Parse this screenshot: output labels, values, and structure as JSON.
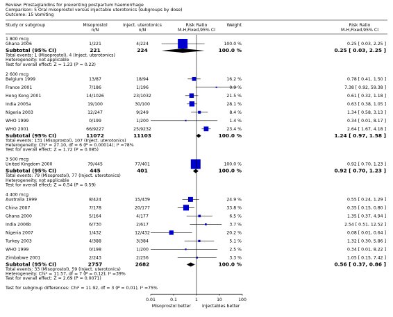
{
  "chart_data": {
    "type": "forest",
    "review": "Review:   Prostaglandins for preventing postpartum haemorrhage",
    "comparison": "Comparison:   5 Oral misoprostol versus injectable uterotonics (subgroups by dose)",
    "outcome": "Outcome:   15 Vomiting",
    "columns": {
      "study": "Study or subgroup",
      "exp": "Misoprostol",
      "exp_unit": "n/N",
      "ctl": "Inject. uterotonics",
      "ctl_unit": "n/N",
      "plot": "Risk Ratio",
      "plot_method": "M-H,Fixed,95% CI",
      "weight": "Weight",
      "effect": "Risk Ratio",
      "effect_method": "M-H,Fixed,95% CI"
    },
    "groups": [
      {
        "name": "1 800 mcg",
        "studies": [
          {
            "name": "Ghana 2006",
            "exp": "1/221",
            "ctl": "4/224",
            "weight": {
              "value": 100.0,
              "label": "100.0 %"
            },
            "values": [
              0.25,
              0.03,
              2.25
            ],
            "value_label": "0.25 [ 0.03, 2.25 ]"
          }
        ],
        "subtotal": {
          "name": "Subtotal (95% CI)",
          "exp": 221,
          "ctl": 224,
          "weight": {
            "value": 100.0,
            "label": "100.0 %"
          },
          "values": [
            0.25,
            0.03,
            2.25
          ],
          "value_label": "0.25 [ 0.03, 2.25 ]"
        },
        "events": "Total events: 1 (Misoprostol), 4 (Inject. uterotonics)",
        "heterogeneity": "Heterogeneity: not applicable",
        "overall": "Test for overall effect: Z = 1.23 (P = 0.22)"
      },
      {
        "name": "2 600 mcg",
        "studies": [
          {
            "name": "Belgium 1999",
            "exp": "13/87",
            "ctl": "18/94",
            "weight": {
              "value": 16.2,
              "label": "16.2 %"
            },
            "values": [
              0.78,
              0.41,
              1.5
            ],
            "value_label": "0.78 [ 0.41, 1.50 ]"
          },
          {
            "name": "France 2001",
            "exp": "7/186",
            "ctl": "1/196",
            "weight": {
              "value": 0.9,
              "label": "0.9 %"
            },
            "values": [
              7.38,
              0.92,
              59.38
            ],
            "value_label": "7.38 [ 0.92, 59.38 ]"
          },
          {
            "name": "Hong Kong 2001",
            "exp": "14/1026",
            "ctl": "23/1032",
            "weight": {
              "value": 21.5,
              "label": "21.5 %"
            },
            "values": [
              0.61,
              0.32,
              1.18
            ],
            "value_label": "0.61 [ 0.32, 1.18 ]"
          },
          {
            "name": "India 2005a",
            "exp": "19/100",
            "ctl": "30/100",
            "weight": {
              "value": 28.1,
              "label": "28.1 %"
            },
            "values": [
              0.63,
              0.38,
              1.05
            ],
            "value_label": "0.63 [ 0.38, 1.05 ]"
          },
          {
            "name": "Nigeria 2003",
            "exp": "12/247",
            "ctl": "9/249",
            "weight": {
              "value": 8.4,
              "label": "8.4 %"
            },
            "values": [
              1.34,
              0.58,
              3.13
            ],
            "value_label": "1.34 [ 0.58, 3.13 ]"
          },
          {
            "name": "WHO 1999",
            "exp": "0/199",
            "ctl": "1/200",
            "weight": {
              "value": 1.4,
              "label": "1.4 %"
            },
            "values": [
              0.34,
              0.01,
              8.17
            ],
            "value_label": "0.34 [ 0.01, 8.17 ]"
          },
          {
            "name": "WHO 2001",
            "exp": "66/9227",
            "ctl": "25/9232",
            "weight": {
              "value": 23.4,
              "label": "23.4 %"
            },
            "values": [
              2.64,
              1.67,
              4.18
            ],
            "value_label": "2.64 [ 1.67, 4.18 ]"
          }
        ],
        "subtotal": {
          "name": "Subtotal (95% CI)",
          "exp": 11072,
          "ctl": 11103,
          "weight": {
            "value": 100.0,
            "label": "100.0 %"
          },
          "values": [
            1.24,
            0.97,
            1.58
          ],
          "value_label": "1.24 [ 0.97, 1.58 ]"
        },
        "events": "Total events: 131 (Misoprostol), 107 (Inject. uterotonics)",
        "heterogeneity": "Heterogeneity: Chi² = 27.10, df = 6 (P = 0.00014); I² =78%",
        "overall": "Test for overall effect: Z = 1.72 (P = 0.085)"
      },
      {
        "name": "3 500 mcg",
        "studies": [
          {
            "name": "United Kingdom 2000",
            "exp": "79/445",
            "ctl": "77/401",
            "weight": {
              "value": 100.0,
              "label": "100.0 %"
            },
            "values": [
              0.92,
              0.7,
              1.23
            ],
            "value_label": "0.92 [ 0.70, 1.23 ]"
          }
        ],
        "subtotal": {
          "name": "Subtotal (95% CI)",
          "exp": 445,
          "ctl": 401,
          "weight": {
            "value": 100.0,
            "label": "100.0 %"
          },
          "values": [
            0.92,
            0.7,
            1.23
          ],
          "value_label": "0.92 [ 0.70, 1.23 ]"
        },
        "events": "Total events: 79 (Misoprostol), 77 (Inject. uterotonics)",
        "heterogeneity": "Heterogeneity: not applicable",
        "overall": "Test for overall effect: Z = 0.54 (P = 0.59)"
      },
      {
        "name": "4 400 mcg",
        "studies": [
          {
            "name": "Australia 1999",
            "exp": "8/424",
            "ctl": "15/439",
            "weight": {
              "value": 24.9,
              "label": "24.9 %"
            },
            "values": [
              0.55,
              0.24,
              1.29
            ],
            "value_label": "0.55 [ 0.24, 1.29 ]"
          },
          {
            "name": "China 2007",
            "exp": "7/178",
            "ctl": "20/177",
            "weight": {
              "value": 33.8,
              "label": "33.8 %"
            },
            "values": [
              0.35,
              0.15,
              0.8
            ],
            "value_label": "0.35 [ 0.15, 0.80 ]"
          },
          {
            "name": "Ghana 2000",
            "exp": "5/164",
            "ctl": "4/177",
            "weight": {
              "value": 6.5,
              "label": "6.5 %"
            },
            "values": [
              1.35,
              0.37,
              4.94
            ],
            "value_label": "1.35 [ 0.37, 4.94 ]"
          },
          {
            "name": "India 2006b",
            "exp": "6/730",
            "ctl": "2/617",
            "weight": {
              "value": 3.7,
              "label": "3.7 %"
            },
            "values": [
              2.54,
              0.51,
              12.52
            ],
            "value_label": "2.54 [ 0.51, 12.52 ]"
          },
          {
            "name": "Nigeria 2007",
            "exp": "1/432",
            "ctl": "12/432",
            "weight": {
              "value": 20.2,
              "label": "20.2 %"
            },
            "values": [
              0.08,
              0.01,
              0.64
            ],
            "value_label": "0.08 [ 0.01, 0.64 ]"
          },
          {
            "name": "Turkey 2003",
            "exp": "4/388",
            "ctl": "3/384",
            "weight": {
              "value": 5.1,
              "label": "5.1 %"
            },
            "values": [
              1.32,
              0.3,
              5.86
            ],
            "value_label": "1.32 [ 0.30, 5.86 ]"
          },
          {
            "name": "WHO 1999",
            "exp": "0/198",
            "ctl": "1/200",
            "weight": {
              "value": 2.5,
              "label": "2.5 %"
            },
            "values": [
              0.34,
              0.01,
              8.22
            ],
            "value_label": "0.34 [ 0.01, 8.22 ]"
          },
          {
            "name": "Zimbabwe 2001",
            "exp": "2/243",
            "ctl": "2/256",
            "weight": {
              "value": 3.3,
              "label": "3.3 %"
            },
            "values": [
              1.05,
              0.15,
              7.42
            ],
            "value_label": "1.05 [ 0.15, 7.42 ]"
          }
        ],
        "subtotal": {
          "name": "Subtotal (95% CI)",
          "exp": 2757,
          "ctl": 2682,
          "weight": {
            "value": 100.0,
            "label": "100.0 %"
          },
          "values": [
            0.56,
            0.37,
            0.86
          ],
          "value_label": "0.56 [ 0.37, 0.86 ]"
        },
        "events": "Total events: 33 (Misoprostol), 59 (Inject. uterotonics)",
        "heterogeneity": "Heterogeneity: Chi² = 11.57, df = 7 (P = 0.12); I² =39%",
        "overall": "Test for overall effect: Z = 2.69 (P = 0.0071)"
      }
    ],
    "subgroup_test": "Test for subgroup differences: Chi² = 11.92, df = 3 (P = 0.01), I² =75%",
    "xlim": [
      0.01,
      100
    ],
    "xticks": [
      0.01,
      0.1,
      1,
      10,
      100
    ],
    "log_scale": true,
    "favours_left": "Misoprostol better",
    "favours_right": "Injectables better",
    "square_color": "#0000cc",
    "diamond_color": "#000000"
  }
}
